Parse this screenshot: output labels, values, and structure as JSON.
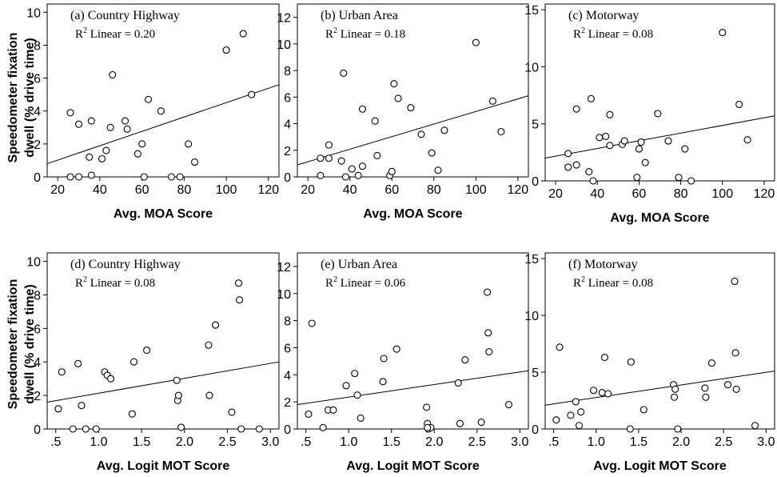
{
  "figure": {
    "shared_ylabel_line1": "Speedometer fixation",
    "shared_ylabel_line2": "dwell (% drive time)"
  },
  "chart_data": [
    {
      "type": "scatter",
      "title": "(a) Country Highway",
      "annotation": {
        "prefix": "R",
        "sup": "2",
        "suffix": " Linear = 0.20"
      },
      "xlabel": "Avg. MOA Score",
      "ylabel": "Speedometer fixation dwell (% drive time)",
      "xlim": [
        15,
        125
      ],
      "ylim": [
        0,
        10.5
      ],
      "xticks": [
        20,
        40,
        60,
        80,
        100,
        120
      ],
      "xtick_labels": [
        "20",
        "40",
        "60",
        "80",
        "100",
        "120"
      ],
      "yticks": [
        0,
        2,
        4,
        6,
        8,
        10
      ],
      "ytick_labels": [
        "0",
        "2",
        "4",
        "6",
        "8",
        "10"
      ],
      "fit_line": {
        "x": [
          15,
          125
        ],
        "y": [
          0.8,
          5.6
        ]
      },
      "points": [
        [
          26,
          3.9
        ],
        [
          26,
          0
        ],
        [
          30,
          3.2
        ],
        [
          30,
          0
        ],
        [
          35,
          1.2
        ],
        [
          36,
          3.4
        ],
        [
          36,
          0.1
        ],
        [
          41,
          1.1
        ],
        [
          43,
          1.6
        ],
        [
          45,
          3.0
        ],
        [
          46,
          6.2
        ],
        [
          52,
          3.4
        ],
        [
          53,
          2.9
        ],
        [
          58,
          1.4
        ],
        [
          60,
          2.0
        ],
        [
          61,
          0
        ],
        [
          63,
          4.7
        ],
        [
          69,
          4.0
        ],
        [
          74,
          0
        ],
        [
          78,
          0
        ],
        [
          82,
          2.0
        ],
        [
          85,
          0.9
        ],
        [
          100,
          7.7
        ],
        [
          108,
          8.7
        ],
        [
          112,
          5.0
        ]
      ]
    },
    {
      "type": "scatter",
      "title": "(b) Urban Area",
      "annotation": {
        "prefix": "R",
        "sup": "2",
        "suffix": " Linear = 0.18"
      },
      "xlabel": "Avg. MOA Score",
      "ylabel": "",
      "xlim": [
        15,
        125
      ],
      "ylim": [
        0,
        13
      ],
      "xticks": [
        20,
        40,
        60,
        80,
        100,
        120
      ],
      "xtick_labels": [
        "20",
        "40",
        "60",
        "80",
        "100",
        "120"
      ],
      "yticks": [
        0,
        2,
        4,
        6,
        8,
        10,
        12
      ],
      "ytick_labels": [
        "0",
        "2",
        "4",
        "6",
        "8",
        "10",
        "12"
      ],
      "fit_line": {
        "x": [
          15,
          125
        ],
        "y": [
          0.9,
          6.1
        ]
      },
      "points": [
        [
          26,
          1.4
        ],
        [
          26,
          0.1
        ],
        [
          30,
          2.4
        ],
        [
          30,
          1.4
        ],
        [
          36,
          1.2
        ],
        [
          37,
          7.8
        ],
        [
          38,
          0
        ],
        [
          41,
          0.6
        ],
        [
          44,
          0.1
        ],
        [
          46,
          5.1
        ],
        [
          46,
          0.8
        ],
        [
          52,
          4.2
        ],
        [
          53,
          1.6
        ],
        [
          59,
          0.1
        ],
        [
          60,
          0.4
        ],
        [
          61,
          7.0
        ],
        [
          63,
          5.9
        ],
        [
          69,
          5.2
        ],
        [
          74,
          3.2
        ],
        [
          79,
          1.8
        ],
        [
          82,
          0.5
        ],
        [
          85,
          3.5
        ],
        [
          100,
          10.1
        ],
        [
          108,
          5.7
        ],
        [
          112,
          3.4
        ]
      ]
    },
    {
      "type": "scatter",
      "title": "(c) Motorway",
      "annotation": {
        "prefix": "R",
        "sup": "2",
        "suffix": " Linear = 0.08"
      },
      "xlabel": "Avg. MOA Score",
      "ylabel": "",
      "xlim": [
        15,
        125
      ],
      "ylim": [
        0,
        15.5
      ],
      "xticks": [
        20,
        40,
        60,
        80,
        100,
        120
      ],
      "xtick_labels": [
        "20",
        "40",
        "60",
        "80",
        "100",
        "120"
      ],
      "yticks": [
        0,
        5,
        10,
        15
      ],
      "ytick_labels": [
        "0",
        "5",
        "10",
        "15"
      ],
      "fit_line": {
        "x": [
          15,
          125
        ],
        "y": [
          2.0,
          5.7
        ]
      },
      "points": [
        [
          26,
          2.4
        ],
        [
          26,
          1.2
        ],
        [
          30,
          6.3
        ],
        [
          30,
          1.4
        ],
        [
          36,
          0.8
        ],
        [
          37,
          7.2
        ],
        [
          38,
          0
        ],
        [
          41,
          3.8
        ],
        [
          44,
          3.9
        ],
        [
          46,
          5.8
        ],
        [
          46,
          3.1
        ],
        [
          52,
          3.2
        ],
        [
          53,
          3.5
        ],
        [
          59,
          0.3
        ],
        [
          60,
          2.8
        ],
        [
          61,
          3.4
        ],
        [
          63,
          1.6
        ],
        [
          69,
          5.9
        ],
        [
          74,
          3.5
        ],
        [
          79,
          0.3
        ],
        [
          82,
          2.8
        ],
        [
          85,
          0
        ],
        [
          100,
          13.0
        ],
        [
          108,
          6.7
        ],
        [
          112,
          3.6
        ]
      ]
    },
    {
      "type": "scatter",
      "title": "(d) Country Highway",
      "annotation": {
        "prefix": "R",
        "sup": "2",
        "suffix": " Linear = 0.08"
      },
      "xlabel": "Avg. Logit MOT Score",
      "ylabel": "Speedometer fixation dwell (% drive time)",
      "xlim": [
        0.4,
        3.1
      ],
      "ylim": [
        0,
        10.5
      ],
      "xticks": [
        0.5,
        1.0,
        1.5,
        2.0,
        2.5,
        3.0
      ],
      "xtick_labels": [
        ".5",
        "1.0",
        "1.5",
        "2.0",
        "2.5",
        "3.0"
      ],
      "yticks": [
        0,
        2,
        4,
        6,
        8,
        10
      ],
      "ytick_labels": [
        "0",
        "2",
        "4",
        "6",
        "8",
        "10"
      ],
      "fit_line": {
        "x": [
          0.4,
          3.1
        ],
        "y": [
          1.6,
          4.0
        ]
      },
      "points": [
        [
          0.53,
          1.2
        ],
        [
          0.57,
          3.4
        ],
        [
          0.7,
          0
        ],
        [
          0.76,
          3.9
        ],
        [
          0.8,
          1.4
        ],
        [
          0.85,
          0
        ],
        [
          0.97,
          0
        ],
        [
          1.07,
          3.4
        ],
        [
          1.1,
          3.2
        ],
        [
          1.14,
          3.0
        ],
        [
          1.39,
          0.9
        ],
        [
          1.41,
          4.0
        ],
        [
          1.56,
          4.7
        ],
        [
          1.91,
          2.9
        ],
        [
          1.92,
          1.7
        ],
        [
          1.93,
          2.0
        ],
        [
          1.96,
          0.1
        ],
        [
          2.28,
          5.0
        ],
        [
          2.29,
          2.0
        ],
        [
          2.36,
          6.2
        ],
        [
          2.55,
          1.0
        ],
        [
          2.63,
          8.7
        ],
        [
          2.64,
          7.7
        ],
        [
          2.66,
          0
        ],
        [
          2.87,
          0
        ]
      ]
    },
    {
      "type": "scatter",
      "title": "(e) Urban Area",
      "annotation": {
        "prefix": "R",
        "sup": "2",
        "suffix": " Linear = 0.06"
      },
      "xlabel": "Avg. Logit MOT Score",
      "ylabel": "",
      "xlim": [
        0.4,
        3.1
      ],
      "ylim": [
        0,
        13
      ],
      "xticks": [
        0.5,
        1.0,
        1.5,
        2.0,
        2.5,
        3.0
      ],
      "xtick_labels": [
        ".5",
        "1.0",
        "1.5",
        "2.0",
        "2.5",
        "3.0"
      ],
      "yticks": [
        0,
        2,
        4,
        6,
        8,
        10,
        12
      ],
      "ytick_labels": [
        "0",
        "2",
        "4",
        "6",
        "8",
        "10",
        "12"
      ],
      "fit_line": {
        "x": [
          0.4,
          3.1
        ],
        "y": [
          1.8,
          4.3
        ]
      },
      "points": [
        [
          0.53,
          1.1
        ],
        [
          0.57,
          7.8
        ],
        [
          0.7,
          0.1
        ],
        [
          0.76,
          1.4
        ],
        [
          0.82,
          1.4
        ],
        [
          0.97,
          3.2
        ],
        [
          1.07,
          4.1
        ],
        [
          1.1,
          2.5
        ],
        [
          1.14,
          0.8
        ],
        [
          1.4,
          3.5
        ],
        [
          1.41,
          5.2
        ],
        [
          1.56,
          5.9
        ],
        [
          1.91,
          1.6
        ],
        [
          1.92,
          0.4
        ],
        [
          1.93,
          0
        ],
        [
          1.96,
          0.1
        ],
        [
          2.28,
          3.4
        ],
        [
          2.3,
          0.4
        ],
        [
          2.36,
          5.1
        ],
        [
          2.55,
          0.5
        ],
        [
          2.62,
          10.1
        ],
        [
          2.63,
          7.1
        ],
        [
          2.64,
          5.7
        ],
        [
          2.87,
          1.8
        ],
        [
          1.92,
          0.1
        ]
      ]
    },
    {
      "type": "scatter",
      "title": "(f) Motorway",
      "annotation": {
        "prefix": "R",
        "sup": "2",
        "suffix": " Linear = 0.08"
      },
      "xlabel": "Avg. Logit MOT Score",
      "ylabel": "",
      "xlim": [
        0.4,
        3.1
      ],
      "ylim": [
        0,
        15.5
      ],
      "xticks": [
        0.5,
        1.0,
        1.5,
        2.0,
        2.5,
        3.0
      ],
      "xtick_labels": [
        ".5",
        "1.0",
        "1.5",
        "2.0",
        "2.5",
        "3.0"
      ],
      "yticks": [
        0,
        5,
        10,
        15
      ],
      "ytick_labels": [
        "0",
        "5",
        "10",
        "15"
      ],
      "fit_line": {
        "x": [
          0.4,
          3.1
        ],
        "y": [
          2.1,
          5.1
        ]
      },
      "points": [
        [
          0.53,
          0.8
        ],
        [
          0.57,
          7.2
        ],
        [
          0.7,
          1.2
        ],
        [
          0.76,
          2.4
        ],
        [
          0.8,
          0.3
        ],
        [
          0.82,
          1.5
        ],
        [
          0.97,
          3.4
        ],
        [
          1.07,
          3.2
        ],
        [
          1.1,
          6.3
        ],
        [
          1.14,
          3.1
        ],
        [
          1.4,
          0
        ],
        [
          1.41,
          5.9
        ],
        [
          1.56,
          1.7
        ],
        [
          1.91,
          3.9
        ],
        [
          1.92,
          2.8
        ],
        [
          1.93,
          3.5
        ],
        [
          1.96,
          0
        ],
        [
          2.28,
          3.6
        ],
        [
          2.29,
          2.8
        ],
        [
          2.36,
          5.8
        ],
        [
          2.55,
          3.9
        ],
        [
          2.63,
          13.0
        ],
        [
          2.64,
          6.7
        ],
        [
          2.65,
          3.5
        ],
        [
          2.87,
          0.3
        ]
      ]
    }
  ]
}
